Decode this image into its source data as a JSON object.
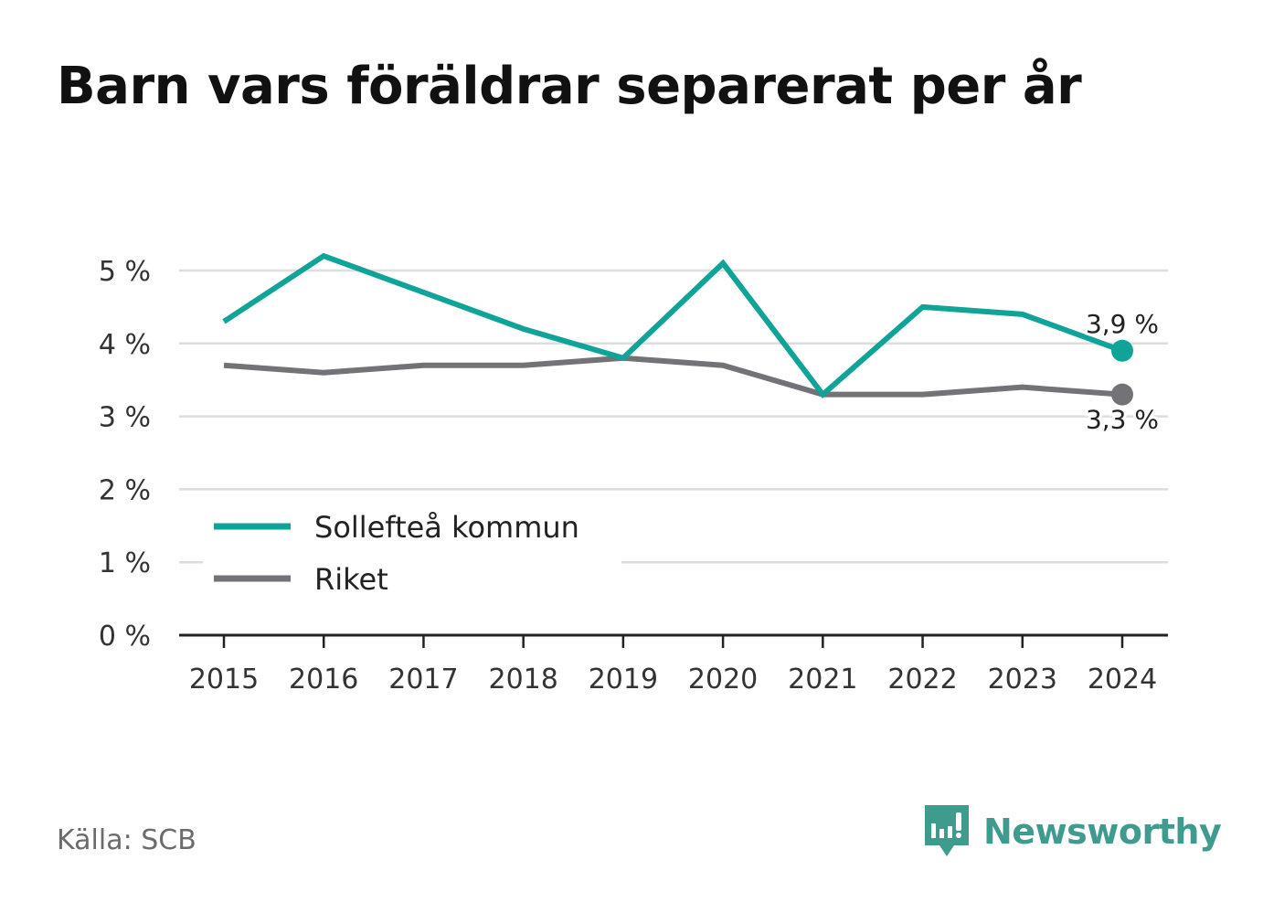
{
  "title": "Barn vars föräldrar separerat per år",
  "source": "Källa: SCB",
  "brand": "Newsworthy",
  "colors": {
    "solleftea": "#10a397",
    "riket": "#737277",
    "grid": "#dddddd",
    "axis": "#222222",
    "brand": "#3f9b8e"
  },
  "chart_data": {
    "type": "line",
    "categories": [
      "2015",
      "2016",
      "2017",
      "2018",
      "2019",
      "2020",
      "2021",
      "2022",
      "2023",
      "2024"
    ],
    "y_ticks": [
      "0 %",
      "1 %",
      "2 %",
      "3 %",
      "4 %",
      "5 %"
    ],
    "ylim": [
      0,
      5
    ],
    "grid": true,
    "legend_placement": "bottom-left",
    "series": [
      {
        "name": "Sollefteå kommun",
        "color": "#10a397",
        "values": [
          4.3,
          5.2,
          4.7,
          4.2,
          3.8,
          5.1,
          3.3,
          4.5,
          4.4,
          3.9
        ],
        "end_label": "3,9 %"
      },
      {
        "name": "Riket",
        "color": "#737277",
        "values": [
          3.7,
          3.6,
          3.7,
          3.7,
          3.8,
          3.7,
          3.3,
          3.3,
          3.4,
          3.3
        ],
        "end_label": "3,3 %"
      }
    ]
  }
}
